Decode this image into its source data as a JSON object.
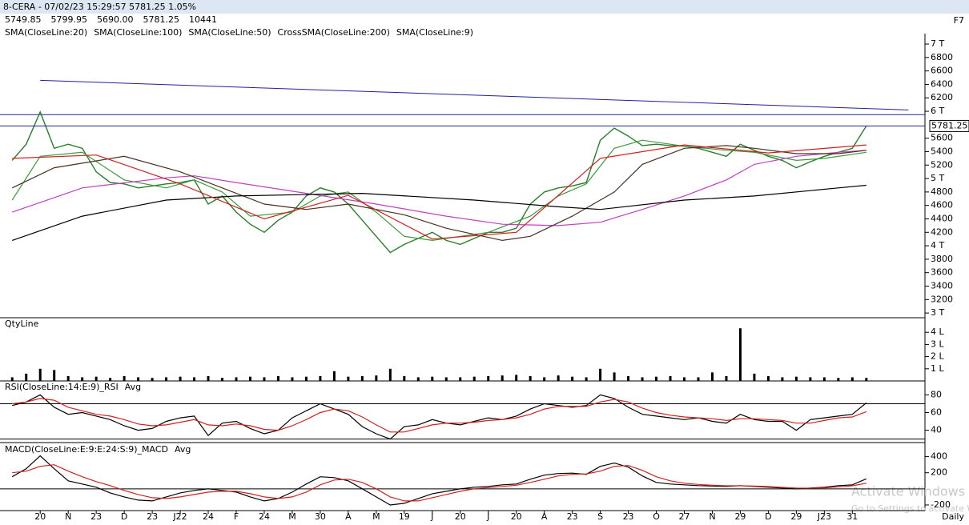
{
  "chart_data": [
    {
      "type": "line",
      "title": "8-CERA - 07/02/23 15:29:57 5781.25 1.05%",
      "quote": [
        {
          "label": "5749.85",
          "color": "#b03cb0"
        },
        {
          "label": "5799.95",
          "color": "#208020"
        },
        {
          "label": "5690.00",
          "color": "#d02020"
        },
        {
          "label": "5781.25",
          "color": "#000000"
        },
        {
          "label": "10441",
          "color": "#000000"
        }
      ],
      "shortcut": "F7",
      "xlim": [
        -2.3,
        62.9
      ],
      "ylim": [
        2930,
        7155
      ],
      "yticks": [
        {
          "value": 7000,
          "label": "7 T"
        },
        6800,
        6600,
        6400,
        6200,
        {
          "value": 6000,
          "label": "6 T"
        },
        5600,
        5400,
        5200,
        {
          "value": 5000,
          "label": "5 T"
        },
        4800,
        4600,
        4400,
        4200,
        {
          "value": 4000,
          "label": "4 T"
        },
        3800,
        3600,
        3400,
        3200,
        {
          "value": 3000,
          "label": "3 T"
        }
      ],
      "x": [
        -2,
        -1,
        0,
        1,
        2,
        3,
        4,
        5,
        6,
        7,
        8,
        9,
        10,
        11,
        12,
        13,
        14,
        15,
        16,
        17,
        18,
        19,
        20,
        21,
        22,
        23,
        24,
        25,
        26,
        27,
        28,
        29,
        30,
        31,
        32,
        33,
        34,
        35,
        36,
        37,
        38,
        39,
        40,
        41,
        42,
        43,
        44,
        45,
        46,
        47,
        48,
        49,
        50,
        51,
        52,
        53,
        54,
        55,
        56,
        57,
        58,
        59
      ],
      "series": [
        {
          "color": "#2a7d2a",
          "values": [
            5270,
            5510,
            5990,
            5450,
            5510,
            5450,
            5100,
            4940,
            4920,
            4860,
            4890,
            4920,
            4940,
            4980,
            4620,
            4740,
            4500,
            4320,
            4200,
            4380,
            4500,
            4740,
            4860,
            4800,
            4620,
            4380,
            4140,
            3900,
            4020,
            4110,
            4200,
            4080,
            4020,
            4110,
            4200,
            4200,
            4260,
            4620,
            4800,
            4860,
            4890,
            4940,
            5570,
            5750,
            5630,
            5490,
            5510,
            5490,
            5480,
            5450,
            5390,
            5330,
            5510,
            5420,
            5330,
            5270,
            5160,
            5250,
            5330,
            5390,
            5450,
            5781.25
          ]
        },
        {
          "name": "SMA(CloseLine:20)",
          "color": "#3c9a3c",
          "x": [
            -2,
            0,
            3,
            6,
            9,
            11,
            13,
            15,
            18,
            20,
            22,
            24,
            26,
            28,
            30,
            32,
            35,
            37,
            39,
            41,
            43,
            46,
            49,
            51,
            54,
            56,
            59
          ],
          "values": [
            4680,
            5330,
            5390,
            4980,
            4860,
            4980,
            4800,
            4440,
            4500,
            4740,
            4800,
            4500,
            4140,
            4080,
            4140,
            4200,
            4440,
            4740,
            4920,
            5450,
            5570,
            5480,
            5420,
            5390,
            5270,
            5300,
            5390
          ]
        },
        {
          "name": "SMA(CloseLine:100)",
          "color": "#c040c0",
          "x": [
            -2,
            3,
            9,
            11,
            14,
            19,
            24,
            29,
            33,
            37,
            40,
            43,
            46,
            49,
            51,
            54,
            57,
            59
          ],
          "values": [
            4500,
            4860,
            5010,
            5040,
            4940,
            4780,
            4620,
            4440,
            4320,
            4300,
            4350,
            4540,
            4740,
            4980,
            5210,
            5330,
            5390,
            5420
          ]
        },
        {
          "name": "SMA(CloseLine:50)",
          "color": "#4a3020",
          "x": [
            -2,
            1,
            6,
            10,
            13,
            16,
            19,
            22,
            26,
            29,
            33,
            35,
            38,
            41,
            43,
            46,
            49,
            51,
            54,
            57,
            59
          ],
          "values": [
            4860,
            5160,
            5330,
            5100,
            4860,
            4620,
            4540,
            4620,
            4460,
            4260,
            4080,
            4140,
            4440,
            4800,
            5210,
            5450,
            5490,
            5450,
            5370,
            5370,
            5420
          ]
        },
        {
          "name": "CrossSMA(CloseLine:200)",
          "color": "#000000",
          "x": [
            -2,
            3,
            9,
            14,
            23,
            31,
            37,
            40,
            46,
            51,
            57,
            59
          ],
          "values": [
            4080,
            4440,
            4680,
            4740,
            4780,
            4680,
            4580,
            4540,
            4680,
            4740,
            4860,
            4900
          ]
        },
        {
          "name": "SMA(CloseLine:9)",
          "color": "#d02020",
          "x": [
            -2,
            4,
            10,
            16,
            22,
            28,
            34,
            40,
            46,
            52,
            59
          ],
          "values": [
            5300,
            5350,
            4920,
            4400,
            4750,
            4100,
            4200,
            5300,
            5500,
            5380,
            5500
          ]
        }
      ],
      "trendline": {
        "color": "#2020a0",
        "x": [
          0,
          62
        ],
        "values": [
          6460,
          6020
        ]
      },
      "hlines": [
        5950
      ],
      "last_close": 5781.25
    },
    {
      "type": "bar",
      "title": "QtyLine",
      "color": "#000000",
      "xlim": [
        -2.3,
        62.9
      ],
      "ylim": [
        0,
        500000
      ],
      "yticks": [
        {
          "value": 400000,
          "label": "4 L"
        },
        {
          "value": 300000,
          "label": "3 L"
        },
        {
          "value": 200000,
          "label": "2 L"
        },
        {
          "value": 100000,
          "label": "1 L"
        }
      ],
      "x": [
        -2,
        -1,
        0,
        1,
        2,
        3,
        4,
        5,
        6,
        7,
        8,
        9,
        10,
        11,
        12,
        13,
        14,
        15,
        16,
        17,
        18,
        19,
        20,
        21,
        22,
        23,
        24,
        25,
        26,
        27,
        28,
        29,
        30,
        31,
        32,
        33,
        34,
        35,
        36,
        37,
        38,
        39,
        40,
        41,
        42,
        43,
        44,
        45,
        46,
        47,
        48,
        49,
        50,
        51,
        52,
        53,
        54,
        55,
        56,
        57,
        58,
        59
      ],
      "values": [
        30000,
        60000,
        100000,
        90000,
        40000,
        30000,
        35000,
        25000,
        40000,
        30000,
        25000,
        30000,
        35000,
        30000,
        40000,
        25000,
        30000,
        35000,
        30000,
        40000,
        30000,
        35000,
        40000,
        80000,
        35000,
        40000,
        45000,
        100000,
        40000,
        30000,
        35000,
        30000,
        30000,
        35000,
        40000,
        45000,
        50000,
        40000,
        30000,
        45000,
        35000,
        30000,
        100000,
        70000,
        40000,
        30000,
        35000,
        40000,
        30000,
        30000,
        70000,
        40000,
        433000,
        60000,
        40000,
        30000,
        35000,
        30000,
        30000,
        25000,
        30000,
        25000
      ]
    },
    {
      "type": "line",
      "xlim": [
        -2.3,
        62.9
      ],
      "ylim": [
        26,
        94
      ],
      "yticks": [
        80,
        60,
        40
      ],
      "hlines": [
        70,
        30
      ],
      "x": [
        -2,
        -1,
        0,
        1,
        2,
        3,
        4,
        5,
        6,
        7,
        8,
        9,
        10,
        11,
        12,
        13,
        14,
        15,
        16,
        17,
        18,
        19,
        20,
        21,
        22,
        23,
        24,
        25,
        26,
        27,
        28,
        29,
        30,
        31,
        32,
        33,
        34,
        35,
        36,
        37,
        38,
        39,
        40,
        41,
        42,
        43,
        44,
        45,
        46,
        47,
        48,
        49,
        50,
        51,
        52,
        53,
        54,
        55,
        56,
        57,
        58,
        59
      ],
      "series": [
        {
          "name": "RSI(CloseLine:14:E:9)_RSI",
          "color": "#000000",
          "values": [
            68,
            72,
            80,
            66,
            58,
            60,
            56,
            52,
            45,
            40,
            42,
            50,
            54,
            56,
            34,
            48,
            50,
            42,
            36,
            40,
            54,
            62,
            70,
            64,
            58,
            44,
            36,
            30,
            44,
            46,
            52,
            48,
            46,
            50,
            54,
            52,
            56,
            64,
            70,
            68,
            66,
            68,
            80,
            76,
            66,
            58,
            56,
            54,
            52,
            54,
            50,
            48,
            58,
            52,
            50,
            50,
            40,
            52,
            54,
            56,
            58,
            71
          ]
        },
        {
          "name": "Avg",
          "color": "#d02020",
          "values": [
            70,
            72,
            76,
            74,
            66,
            62,
            58,
            56,
            52,
            47,
            45,
            46,
            49,
            52,
            46,
            45,
            47,
            45,
            41,
            40,
            45,
            52,
            60,
            64,
            62,
            55,
            46,
            38,
            38,
            42,
            46,
            48,
            48,
            49,
            51,
            52,
            54,
            58,
            64,
            67,
            67,
            67,
            72,
            75,
            72,
            65,
            60,
            57,
            55,
            54,
            53,
            51,
            53,
            53,
            52,
            51,
            48,
            48,
            51,
            54,
            55,
            61
          ]
        }
      ]
    },
    {
      "type": "line",
      "xlim": [
        -2.3,
        62.9
      ],
      "ylim": [
        -270,
        555
      ],
      "yticks": [
        400,
        200,
        -200
      ],
      "hlines": [
        0
      ],
      "xlabel": "Daily",
      "xticks": [
        {
          "value": 0,
          "label": "20"
        },
        {
          "value": 2,
          "label": "N"
        },
        {
          "value": 4,
          "label": "23"
        },
        {
          "value": 6,
          "label": "D"
        },
        {
          "value": 8,
          "label": "23"
        },
        {
          "value": 10,
          "label": "J22"
        },
        {
          "value": 12,
          "label": "24"
        },
        {
          "value": 14,
          "label": "F"
        },
        {
          "value": 16,
          "label": "24"
        },
        {
          "value": 18,
          "label": "M"
        },
        {
          "value": 20,
          "label": "30"
        },
        {
          "value": 22,
          "label": "A"
        },
        {
          "value": 24,
          "label": "M"
        },
        {
          "value": 26,
          "label": "19"
        },
        {
          "value": 28,
          "label": "J"
        },
        {
          "value": 30,
          "label": "20"
        },
        {
          "value": 32,
          "label": "J"
        },
        {
          "value": 34,
          "label": "20"
        },
        {
          "value": 36,
          "label": "A"
        },
        {
          "value": 38,
          "label": "23"
        },
        {
          "value": 40,
          "label": "S"
        },
        {
          "value": 42,
          "label": "23"
        },
        {
          "value": 44,
          "label": "O"
        },
        {
          "value": 46,
          "label": "27"
        },
        {
          "value": 48,
          "label": "N"
        },
        {
          "value": 50,
          "label": "29"
        },
        {
          "value": 52,
          "label": "D"
        },
        {
          "value": 54,
          "label": "29"
        },
        {
          "value": 56,
          "label": "J23"
        },
        {
          "value": 58,
          "label": "31"
        }
      ],
      "x": [
        -2,
        -1,
        0,
        1,
        2,
        3,
        4,
        5,
        6,
        7,
        8,
        9,
        10,
        11,
        12,
        13,
        14,
        15,
        16,
        17,
        18,
        19,
        20,
        21,
        22,
        23,
        24,
        25,
        26,
        27,
        28,
        29,
        30,
        31,
        32,
        33,
        34,
        35,
        36,
        37,
        38,
        39,
        40,
        41,
        42,
        43,
        44,
        45,
        46,
        47,
        48,
        49,
        50,
        51,
        52,
        53,
        54,
        55,
        56,
        57,
        58,
        59
      ],
      "series": [
        {
          "name": "MACD(CloseLine:E:9:E:24:S:9)_MACD",
          "color": "#000000",
          "values": [
            150,
            250,
            410,
            250,
            100,
            60,
            20,
            -50,
            -100,
            -140,
            -150,
            -100,
            -50,
            -20,
            0,
            -20,
            -40,
            -100,
            -150,
            -120,
            -40,
            60,
            150,
            140,
            100,
            0,
            -100,
            -200,
            -180,
            -120,
            -60,
            -30,
            0,
            20,
            30,
            50,
            60,
            120,
            170,
            190,
            195,
            180,
            280,
            320,
            270,
            160,
            80,
            60,
            50,
            40,
            35,
            30,
            40,
            30,
            20,
            10,
            0,
            10,
            20,
            40,
            50,
            125
          ]
        },
        {
          "name": "Avg",
          "color": "#d02020",
          "values": [
            200,
            220,
            280,
            300,
            220,
            150,
            90,
            40,
            -20,
            -70,
            -110,
            -120,
            -100,
            -70,
            -40,
            -30,
            -30,
            -60,
            -100,
            -120,
            -100,
            -40,
            50,
            110,
            120,
            80,
            0,
            -100,
            -150,
            -150,
            -110,
            -70,
            -30,
            0,
            15,
            30,
            45,
            80,
            120,
            160,
            180,
            185,
            220,
            280,
            290,
            230,
            150,
            100,
            70,
            55,
            45,
            38,
            38,
            35,
            28,
            18,
            10,
            8,
            12,
            25,
            38,
            70
          ]
        }
      ]
    }
  ],
  "watermark": [
    "Activate Windows",
    "Go to Settings to activate Windows."
  ]
}
